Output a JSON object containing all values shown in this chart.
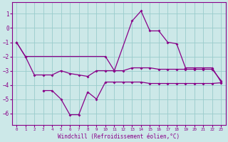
{
  "background_color": "#cce8e8",
  "line_color": "#880088",
  "grid_color": "#99cccc",
  "xlabel": "Windchill (Refroidissement éolien,°C)",
  "xlim": [
    -0.5,
    23.5
  ],
  "ylim": [
    -6.8,
    1.8
  ],
  "yticks": [
    1,
    0,
    -1,
    -2,
    -3,
    -4,
    -5,
    -6
  ],
  "xticks": [
    0,
    1,
    2,
    3,
    4,
    5,
    6,
    7,
    8,
    9,
    10,
    11,
    12,
    13,
    14,
    15,
    16,
    17,
    18,
    19,
    20,
    21,
    22,
    23
  ],
  "line1_x": [
    0,
    1,
    10,
    11,
    13,
    14,
    15,
    16,
    17,
    18,
    19,
    20,
    21,
    22,
    23
  ],
  "line1_y": [
    -1,
    -2,
    -2,
    -3,
    0.5,
    1.2,
    -0.2,
    -0.2,
    -1,
    -1.1,
    -2.8,
    -2.8,
    -2.8,
    -2.8,
    -3.8
  ],
  "line2_x": [
    0,
    1,
    2,
    3,
    4,
    5,
    6,
    7,
    8,
    9,
    10,
    11,
    12,
    13,
    14,
    15,
    16,
    17,
    18,
    19,
    20,
    21,
    22,
    23
  ],
  "line2_y": [
    -1,
    -2,
    -3.3,
    -3.3,
    -3.3,
    -3.0,
    -3.2,
    -3.3,
    -3.4,
    -3,
    -3,
    -3,
    -3,
    -2.8,
    -2.8,
    -2.8,
    -2.9,
    -2.9,
    -2.9,
    -2.9,
    -2.9,
    -2.9,
    -2.9,
    -3.7
  ],
  "line3_x": [
    3,
    4,
    5,
    6,
    7,
    8,
    9,
    10,
    11,
    12,
    13,
    14,
    15,
    16,
    17,
    18,
    19,
    20,
    21,
    22,
    23
  ],
  "line3_y": [
    -4.4,
    -4.4,
    -5,
    -6.1,
    -6.1,
    -4.5,
    -5,
    -3.8,
    -3.8,
    -3.8,
    -3.8,
    -3.8,
    -3.9,
    -3.9,
    -3.9,
    -3.9,
    -3.9,
    -3.9,
    -3.9,
    -3.9,
    -3.85
  ]
}
